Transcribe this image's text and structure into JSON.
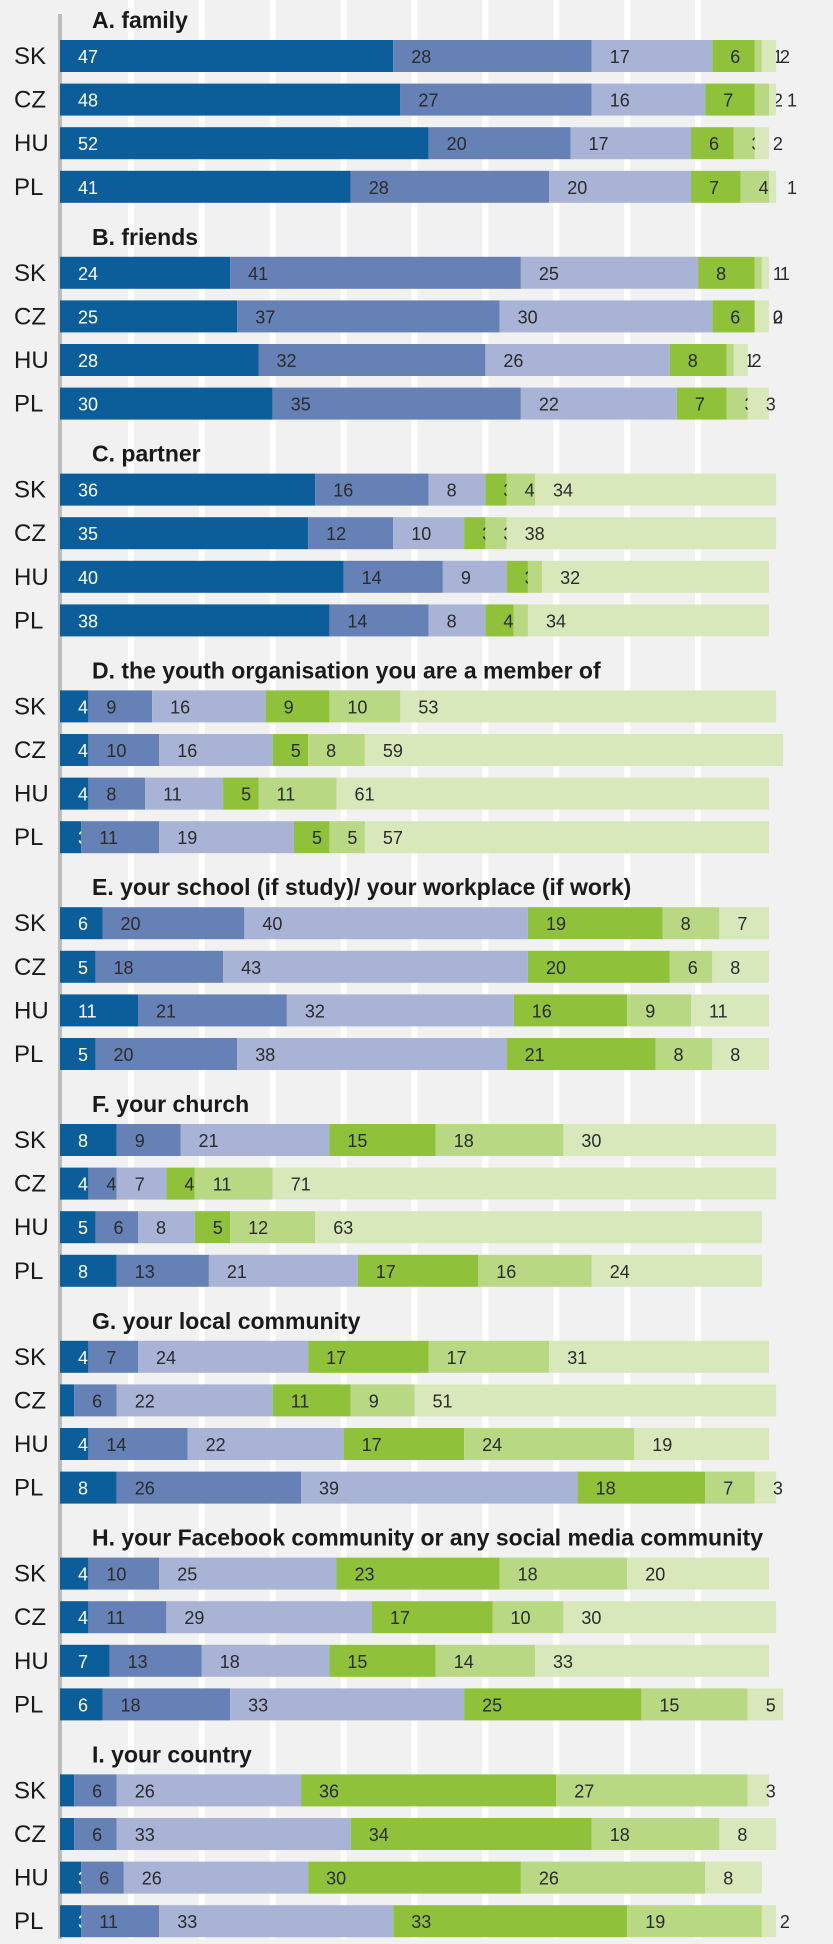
{
  "chart_data": {
    "type": "bar",
    "orientation": "horizontal",
    "stacked": true,
    "value_unit": "percent",
    "xlim": [
      0,
      100
    ],
    "grid": true,
    "legend": "none",
    "colors": [
      "#0b5e9a",
      "#6681b5",
      "#a9b3d6",
      "#8fc23a",
      "#b8d884",
      "#d8e8bb"
    ],
    "groups": [
      {
        "title": "A. family",
        "rows": [
          {
            "label": "SK",
            "values": [
              47,
              28,
              17,
              6,
              1,
              2
            ]
          },
          {
            "label": "CZ",
            "values": [
              48,
              27,
              16,
              7,
              2,
              1
            ]
          },
          {
            "label": "HU",
            "values": [
              52,
              20,
              17,
              6,
              3,
              2
            ]
          },
          {
            "label": "PL",
            "values": [
              41,
              28,
              20,
              7,
              4,
              1
            ]
          }
        ]
      },
      {
        "title": "B. friends",
        "rows": [
          {
            "label": "SK",
            "values": [
              24,
              41,
              25,
              8,
              1,
              1
            ]
          },
          {
            "label": "CZ",
            "values": [
              25,
              37,
              30,
              6,
              0,
              2
            ]
          },
          {
            "label": "HU",
            "values": [
              28,
              32,
              26,
              8,
              1,
              2
            ]
          },
          {
            "label": "PL",
            "values": [
              30,
              35,
              22,
              7,
              3,
              3
            ]
          }
        ]
      },
      {
        "title": "C. partner",
        "rows": [
          {
            "label": "SK",
            "values": [
              36,
              16,
              8,
              3,
              4,
              34
            ]
          },
          {
            "label": "CZ",
            "values": [
              35,
              12,
              10,
              3,
              3,
              38
            ]
          },
          {
            "label": "HU",
            "values": [
              40,
              14,
              9,
              3,
              2,
              32
            ]
          },
          {
            "label": "PL",
            "values": [
              38,
              14,
              8,
              4,
              2,
              34
            ]
          }
        ]
      },
      {
        "title": "D. the youth organisation you are a member of",
        "rows": [
          {
            "label": "SK",
            "values": [
              4,
              9,
              16,
              9,
              10,
              53
            ]
          },
          {
            "label": "CZ",
            "values": [
              4,
              10,
              16,
              5,
              8,
              59
            ]
          },
          {
            "label": "HU",
            "values": [
              4,
              8,
              11,
              5,
              11,
              61
            ]
          },
          {
            "label": "PL",
            "values": [
              3,
              11,
              19,
              5,
              5,
              57
            ]
          }
        ]
      },
      {
        "title": "E. your school (if study)/  your workplace (if work)",
        "rows": [
          {
            "label": "SK",
            "values": [
              6,
              20,
              40,
              19,
              8,
              7
            ]
          },
          {
            "label": "CZ",
            "values": [
              5,
              18,
              43,
              20,
              6,
              8
            ]
          },
          {
            "label": "HU",
            "values": [
              11,
              21,
              32,
              16,
              9,
              11
            ]
          },
          {
            "label": "PL",
            "values": [
              5,
              20,
              38,
              21,
              8,
              8
            ]
          }
        ]
      },
      {
        "title": "F. your church",
        "rows": [
          {
            "label": "SK",
            "values": [
              8,
              9,
              21,
              15,
              18,
              30
            ]
          },
          {
            "label": "CZ",
            "values": [
              4,
              4,
              7,
              4,
              11,
              71
            ]
          },
          {
            "label": "HU",
            "values": [
              5,
              6,
              8,
              5,
              12,
              63
            ]
          },
          {
            "label": "PL",
            "values": [
              8,
              13,
              21,
              17,
              16,
              24
            ]
          }
        ]
      },
      {
        "title": "G. your local community",
        "rows": [
          {
            "label": "SK",
            "values": [
              4,
              7,
              24,
              17,
              17,
              31
            ]
          },
          {
            "label": "CZ",
            "values": [
              2,
              6,
              22,
              11,
              9,
              51
            ]
          },
          {
            "label": "HU",
            "values": [
              4,
              14,
              22,
              17,
              24,
              19
            ]
          },
          {
            "label": "PL",
            "values": [
              8,
              26,
              39,
              18,
              7,
              3
            ]
          }
        ]
      },
      {
        "title": "H. your Facebook community or any social media community",
        "rows": [
          {
            "label": "SK",
            "values": [
              4,
              10,
              25,
              23,
              18,
              20
            ]
          },
          {
            "label": "CZ",
            "values": [
              4,
              11,
              29,
              17,
              10,
              30
            ]
          },
          {
            "label": "HU",
            "values": [
              7,
              13,
              18,
              15,
              14,
              33
            ]
          },
          {
            "label": "PL",
            "values": [
              6,
              18,
              33,
              25,
              15,
              5
            ]
          }
        ]
      },
      {
        "title": "I. your country",
        "rows": [
          {
            "label": "SK",
            "values": [
              2,
              6,
              26,
              36,
              27,
              3
            ]
          },
          {
            "label": "CZ",
            "values": [
              2,
              6,
              33,
              34,
              18,
              8
            ]
          },
          {
            "label": "HU",
            "values": [
              3,
              6,
              26,
              30,
              26,
              8
            ]
          },
          {
            "label": "PL",
            "values": [
              3,
              11,
              33,
              33,
              19,
              2
            ]
          }
        ]
      }
    ]
  }
}
